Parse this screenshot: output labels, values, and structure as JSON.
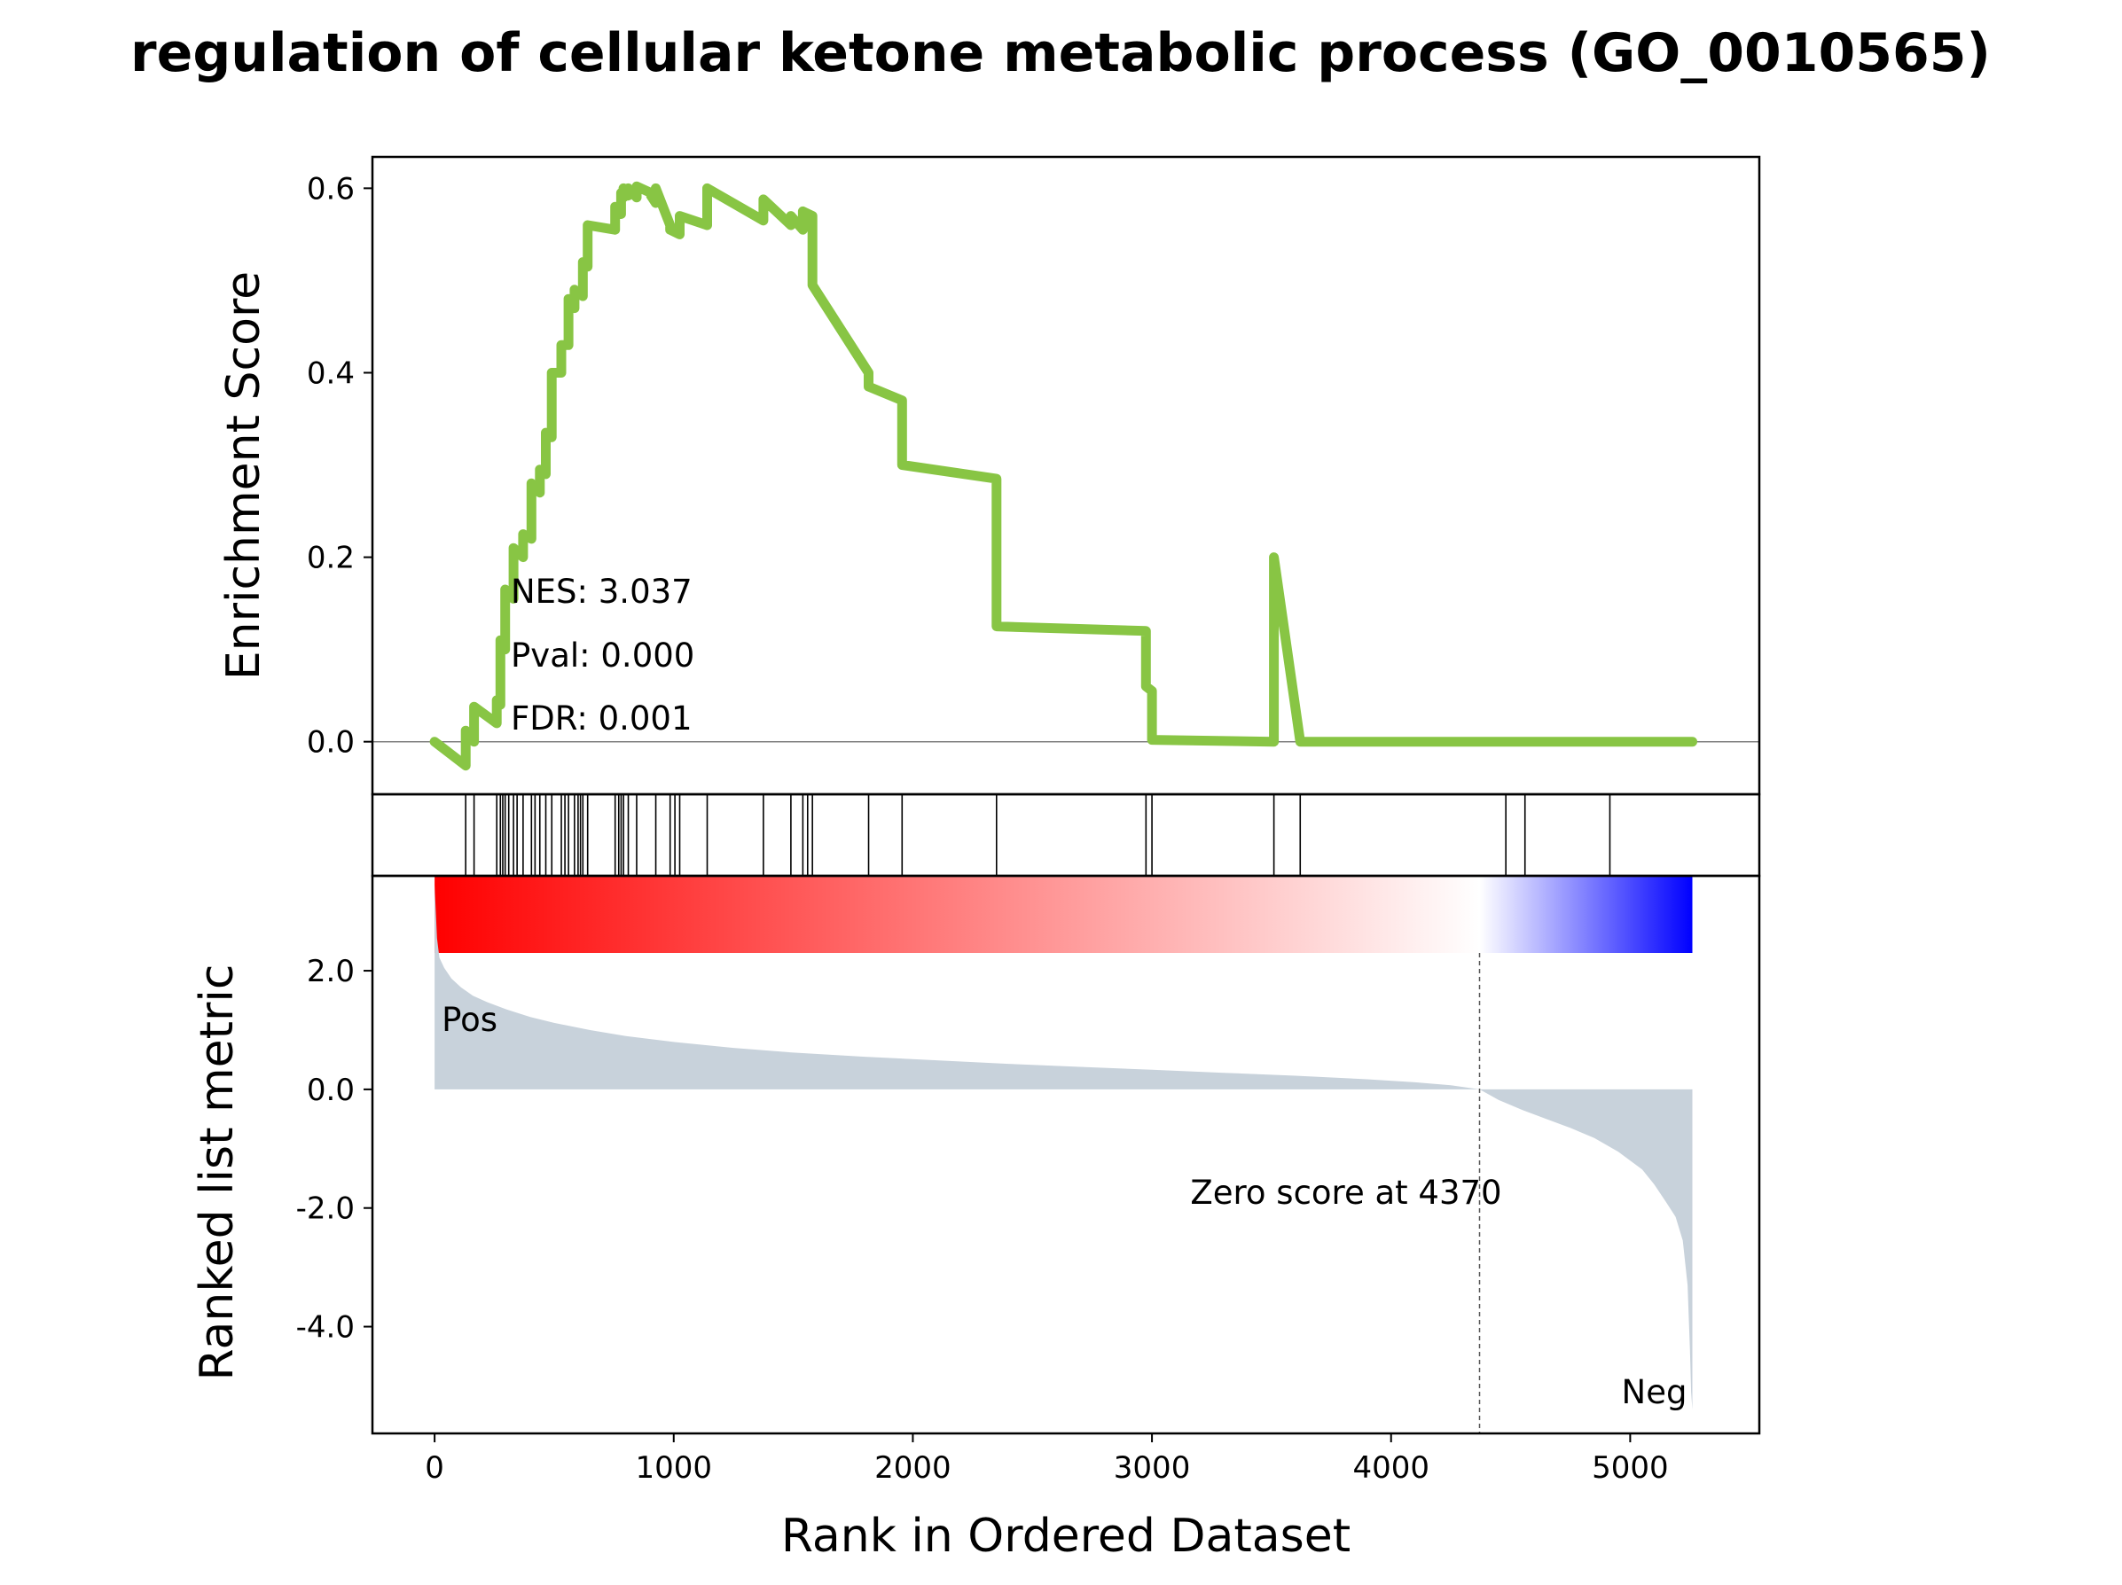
{
  "chart_data": {
    "type": "line",
    "title": "regulation of cellular ketone metabolic process (GO_0010565)",
    "xlabel": "Rank in Ordered Dataset",
    "xlim": [
      -260,
      5540
    ],
    "xticks": [
      0,
      1000,
      2000,
      3000,
      4000,
      5000
    ],
    "xtick_labels": [
      "0",
      "1000",
      "2000",
      "3000",
      "4000",
      "5000"
    ],
    "enrichment_panel": {
      "ylabel": "Enrichment Score",
      "ylim": [
        -0.057,
        0.634
      ],
      "yticks": [
        0.0,
        0.2,
        0.4,
        0.6
      ],
      "ytick_labels": [
        "0.0",
        "0.2",
        "0.4",
        "0.6"
      ],
      "line_color": "#88C544",
      "stats": {
        "nes": "NES: 3.037",
        "pval": "Pval: 0.000",
        "fdr": "FDR: 0.001"
      },
      "series": [
        {
          "x": [
            0,
            130,
            130,
            165,
            165,
            260,
            260,
            275,
            275,
            295,
            295,
            330,
            330,
            370,
            370,
            405,
            405,
            440,
            440,
            465,
            465,
            490,
            490,
            530,
            530,
            560,
            560,
            585,
            585,
            620,
            620,
            640,
            640,
            755,
            755,
            780,
            780,
            790,
            790,
            810,
            810,
            845,
            845,
            905,
            905,
            925,
            925,
            985,
            985,
            1025,
            1025,
            1140,
            1140,
            1375,
            1375,
            1490,
            1490,
            1540,
            1540,
            1580,
            1580,
            1815,
            1815,
            1955,
            1955,
            2350,
            2350,
            2975,
            2975,
            3000,
            3000,
            3510,
            3510,
            3620,
            3620,
            4480,
            4480,
            4560,
            4560,
            4915,
            4915,
            5260
          ],
          "y": [
            0.0,
            -0.026,
            0.012,
            0.0,
            0.038,
            0.02,
            0.045,
            0.04,
            0.11,
            0.1,
            0.165,
            0.155,
            0.21,
            0.2,
            0.225,
            0.22,
            0.28,
            0.27,
            0.295,
            0.29,
            0.335,
            0.33,
            0.4,
            0.4,
            0.43,
            0.43,
            0.48,
            0.47,
            0.49,
            0.483,
            0.52,
            0.515,
            0.56,
            0.555,
            0.58,
            0.572,
            0.595,
            0.59,
            0.6,
            0.592,
            0.6,
            0.59,
            0.602,
            0.595,
            0.592,
            0.584,
            0.6,
            0.56,
            0.555,
            0.55,
            0.57,
            0.56,
            0.6,
            0.565,
            0.588,
            0.56,
            0.57,
            0.555,
            0.575,
            0.57,
            0.495,
            0.4,
            0.385,
            0.37,
            0.3,
            0.285,
            0.125,
            0.12,
            0.06,
            0.055,
            0.002,
            0.0,
            0.2,
            0.0,
            0.0,
            0.0,
            0.0,
            0.0,
            0.0,
            0.0,
            0.0,
            0.0
          ]
        }
      ]
    },
    "hit_positions": [
      130,
      165,
      260,
      275,
      285,
      295,
      310,
      330,
      345,
      370,
      405,
      420,
      440,
      465,
      490,
      530,
      545,
      560,
      585,
      600,
      610,
      620,
      640,
      755,
      770,
      780,
      790,
      810,
      845,
      925,
      985,
      1005,
      1025,
      1140,
      1375,
      1490,
      1540,
      1560,
      1580,
      1815,
      1955,
      2350,
      2975,
      3000,
      3510,
      3620,
      4480,
      4560,
      4915
    ],
    "heatmap": {
      "colors": [
        "#FF0000",
        "#FFFFFF",
        "#0000FF"
      ],
      "range": [
        0,
        5260
      ]
    },
    "ranked_panel": {
      "ylabel": "Ranked list metric",
      "ylim": [
        -5.8,
        3.6
      ],
      "yticks": [
        2.0,
        0.0,
        -2.0,
        -4.0
      ],
      "ytick_labels": [
        "2.0",
        "0.0",
        "-2.0",
        "-4.0"
      ],
      "fill_color": "#C8D2DB",
      "zero_cross": 4370,
      "zero_label": "Zero score at 4370",
      "pos_label": "Pos",
      "neg_label": "Neg",
      "pos_color": "#FF0000",
      "neg_color": "#0000FF",
      "series": [
        {
          "x": [
            0,
            10,
            20,
            40,
            70,
            110,
            160,
            220,
            300,
            400,
            500,
            650,
            800,
            1000,
            1250,
            1500,
            1800,
            2100,
            2400,
            2700,
            3000,
            3300,
            3600,
            3900,
            4100,
            4250,
            4370,
            4450,
            4550,
            4650,
            4750,
            4850,
            4950,
            5050,
            5100,
            5150,
            5190,
            5220,
            5240,
            5250,
            5255,
            5260
          ],
          "y": [
            3.45,
            2.55,
            2.22,
            2.05,
            1.87,
            1.72,
            1.58,
            1.47,
            1.35,
            1.22,
            1.12,
            1.0,
            0.9,
            0.8,
            0.7,
            0.62,
            0.55,
            0.49,
            0.43,
            0.38,
            0.33,
            0.28,
            0.23,
            0.17,
            0.12,
            0.07,
            0.0,
            -0.18,
            -0.35,
            -0.5,
            -0.65,
            -0.82,
            -1.05,
            -1.35,
            -1.6,
            -1.9,
            -2.15,
            -2.55,
            -3.3,
            -4.4,
            -5.1,
            -5.4
          ]
        }
      ]
    }
  }
}
